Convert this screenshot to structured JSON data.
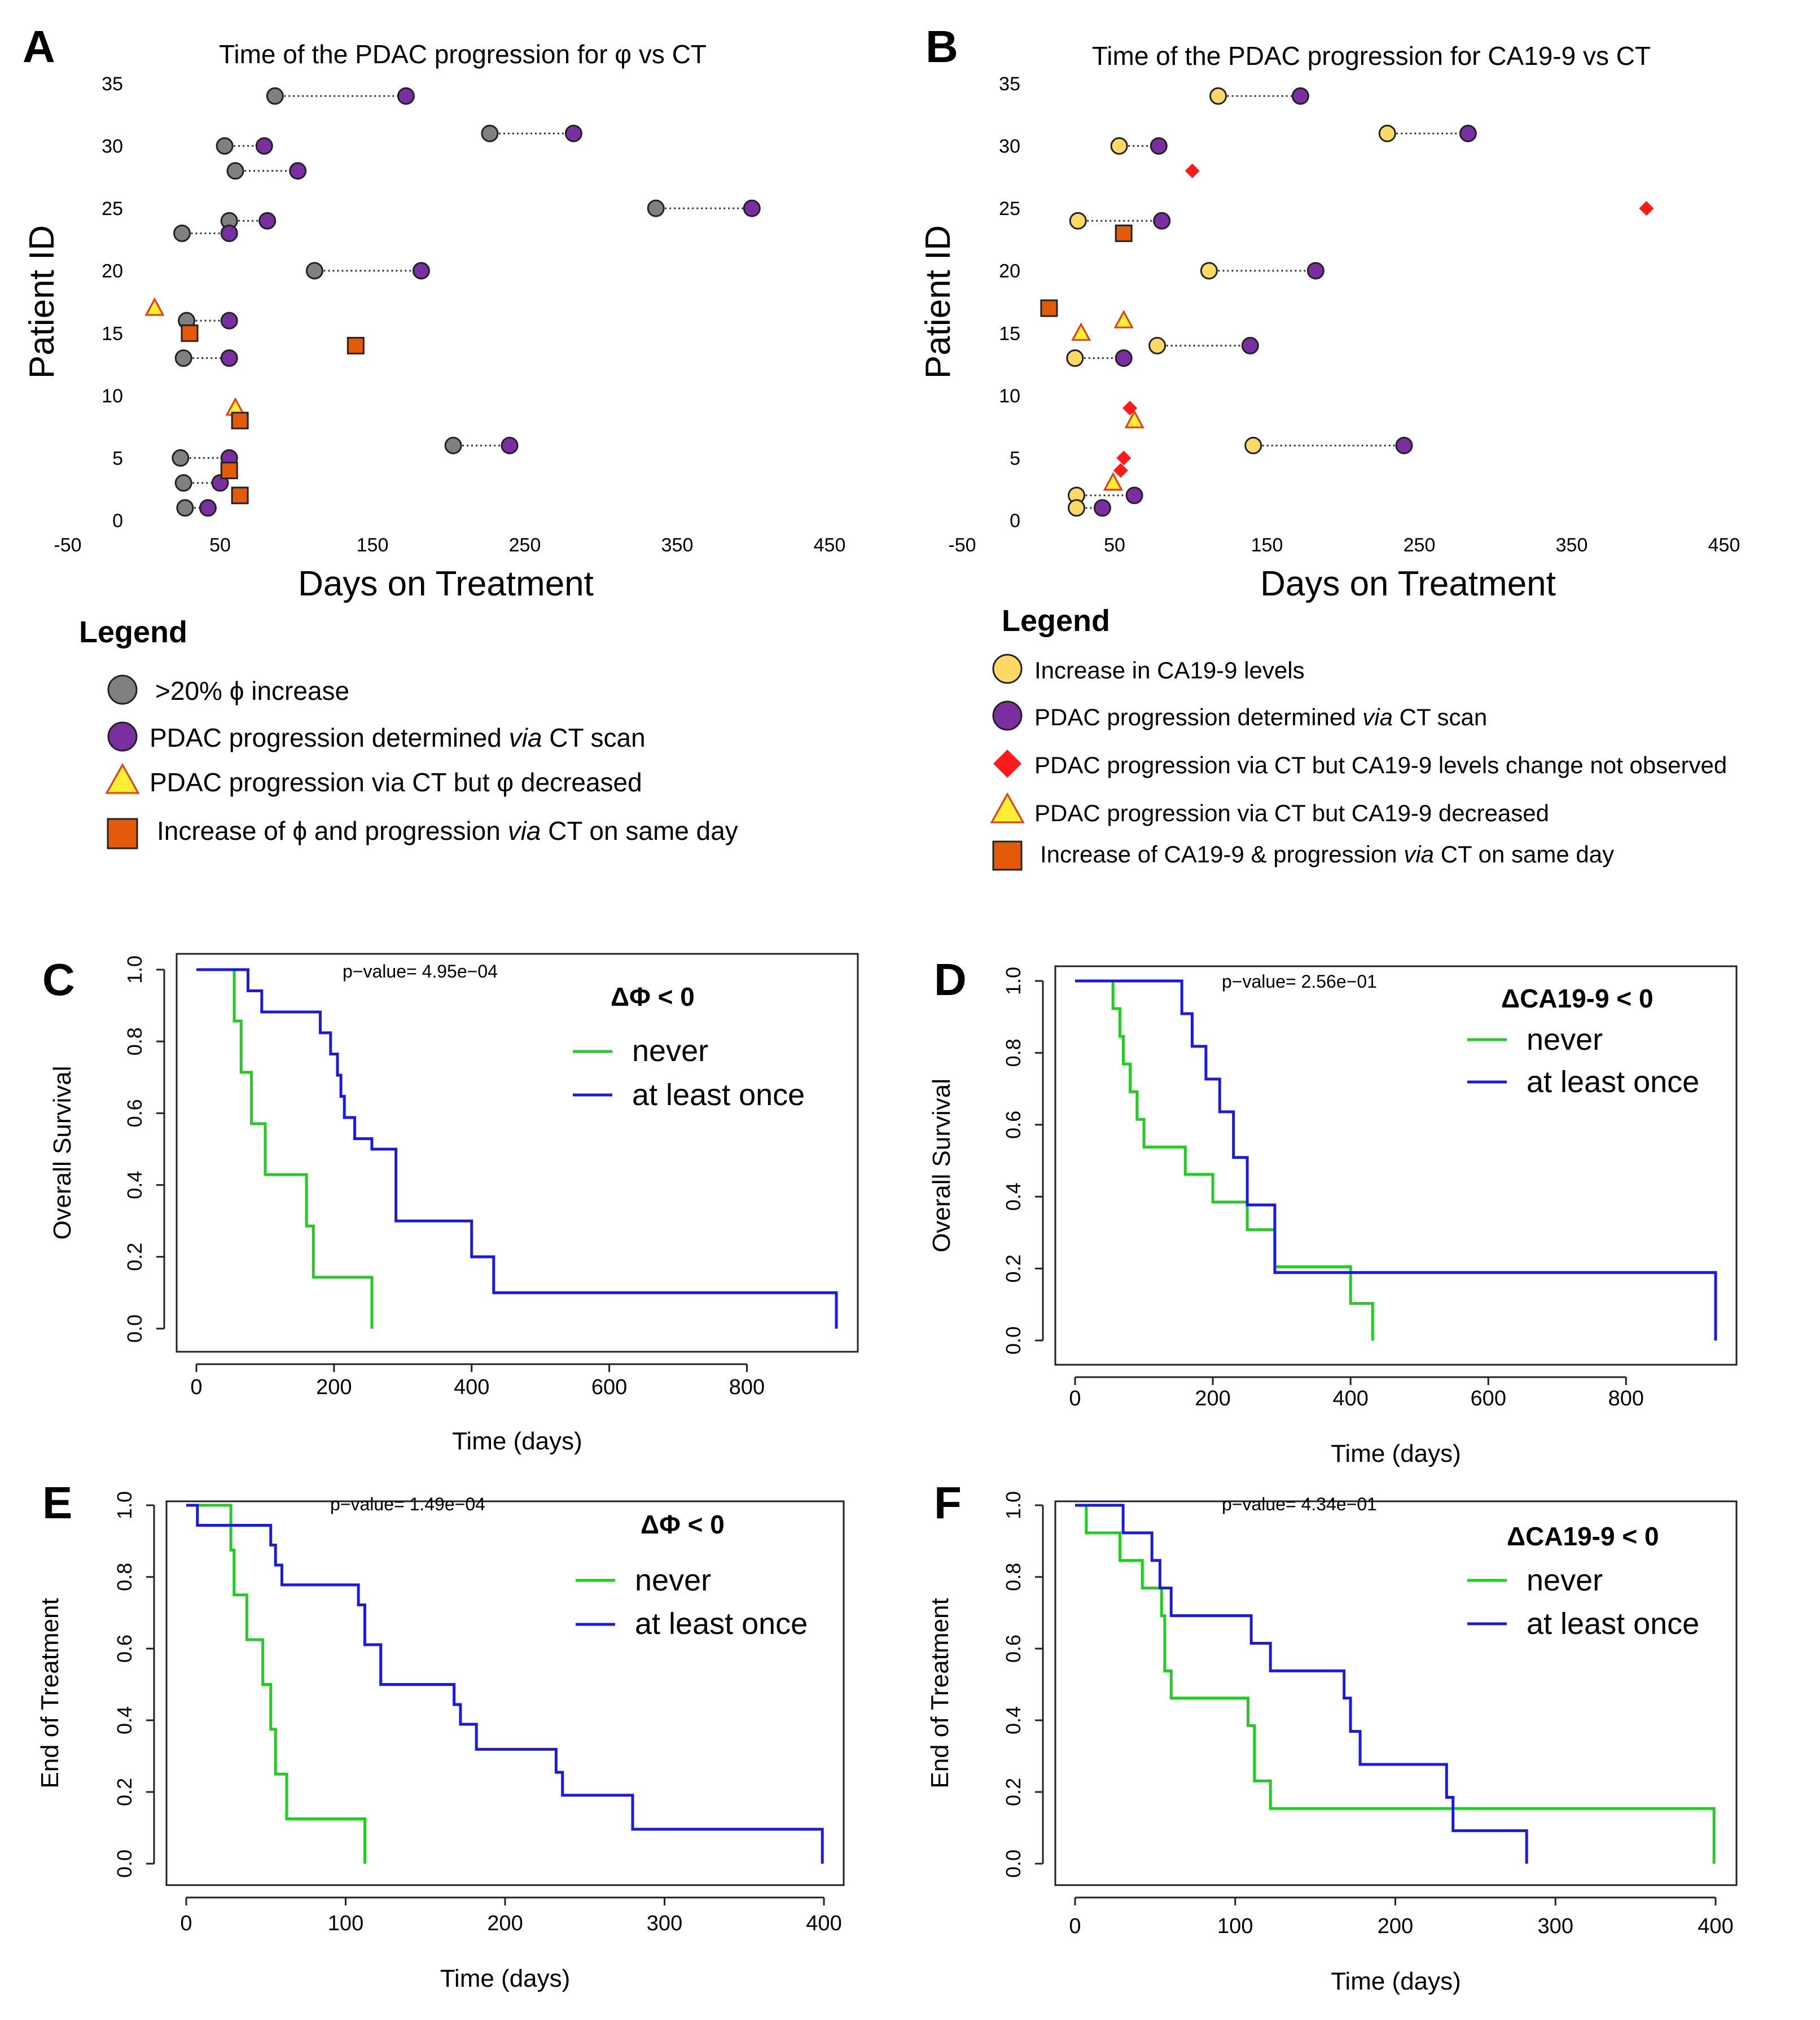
{
  "colors": {
    "grey": "#808080",
    "purple": "#7A2FA0",
    "yellow_tri": "#FFEE33",
    "tri_edge": "#E53B10",
    "orange": "#E35A0A",
    "light_yellow": "#FFD966",
    "red": "#FF1A1A",
    "green": "#22CC22",
    "blue": "#1A1AE0"
  },
  "panels": {
    "A": {
      "letter": "A",
      "title": "Time of the PDAC progression for φ vs CT",
      "xlabel": "Days on Treatment",
      "ylabel": "Patient ID",
      "legend_title": "Legend",
      "legend": [
        {
          "icon": "grey-circle-icon",
          "text": ">20% ϕ increase"
        },
        {
          "icon": "purple-circle-icon",
          "pre": "PDAC progression determined ",
          "it": "via",
          "post": " CT scan"
        },
        {
          "icon": "yellow-triangle-icon",
          "text": "PDAC progression via CT but φ decreased"
        },
        {
          "icon": "orange-square-icon",
          "pre": "Increase of ϕ and progression ",
          "it": "via",
          "post": " CT on same day"
        }
      ]
    },
    "B": {
      "letter": "B",
      "title": "Time of the PDAC progression for CA19-9 vs CT",
      "xlabel": "Days on Treatment",
      "ylabel": "Patient ID",
      "legend_title": "Legend",
      "legend": [
        {
          "icon": "yellow-circle-icon",
          "text": "Increase in CA19-9 levels"
        },
        {
          "icon": "purple-circle-icon",
          "pre": "PDAC progression determined ",
          "it": "via",
          "post": " CT scan"
        },
        {
          "icon": "red-diamond-icon",
          "text": "PDAC progression via CT but CA19-9 levels change not observed"
        },
        {
          "icon": "yellow-triangle-icon",
          "text": "PDAC progression via CT but CA19-9 decreased"
        },
        {
          "icon": "orange-square-icon",
          "pre": "Increase of CA19-9 & progression ",
          "it": "via",
          "post": " CT on same day"
        }
      ]
    },
    "C": {
      "letter": "C",
      "pvalue": "p−value= 4.95e−04",
      "legend_title": "ΔΦ < 0",
      "never": "never",
      "once": "at least once"
    },
    "D": {
      "letter": "D",
      "pvalue": "p−value= 2.56e−01",
      "legend_title": "ΔCA19-9 < 0",
      "never": "never",
      "once": "at least once"
    },
    "E": {
      "letter": "E",
      "pvalue": "p−value= 1.49e−04",
      "legend_title": "ΔΦ < 0",
      "never": "never",
      "once": "at least once"
    },
    "F": {
      "letter": "F",
      "pvalue": "p−value= 4.34e−01",
      "legend_title": "ΔCA19-9 < 0",
      "never": "never",
      "once": "at least once"
    }
  },
  "chart_data": [
    {
      "id": "A",
      "type": "scatter",
      "title": "Time of the PDAC progression for φ vs CT",
      "xlabel": "Days on Treatment",
      "ylabel": "Patient ID",
      "xlim": [
        -50,
        450
      ],
      "ylim": [
        0,
        35
      ],
      "xticks": [
        -50,
        50,
        150,
        250,
        350,
        450
      ],
      "yticks": [
        0,
        5,
        10,
        15,
        20,
        25,
        30,
        35
      ],
      "pairs": [
        {
          "pid": 34,
          "start": 86,
          "end": 172
        },
        {
          "pid": 31,
          "start": 227,
          "end": 282
        },
        {
          "pid": 30,
          "start": 53,
          "end": 79
        },
        {
          "pid": 28,
          "start": 60,
          "end": 101
        },
        {
          "pid": 25,
          "start": 336,
          "end": 399
        },
        {
          "pid": 24,
          "start": 56,
          "end": 81
        },
        {
          "pid": 23,
          "start": 25,
          "end": 56
        },
        {
          "pid": 20,
          "start": 112,
          "end": 182
        },
        {
          "pid": 16,
          "start": 28,
          "end": 56
        },
        {
          "pid": 13,
          "start": 26,
          "end": 56
        },
        {
          "pid": 6,
          "start": 203,
          "end": 240
        },
        {
          "pid": 5,
          "start": 24,
          "end": 56
        },
        {
          "pid": 3,
          "start": 26,
          "end": 50
        },
        {
          "pid": 1,
          "start": 27,
          "end": 42
        }
      ],
      "triangles": [
        {
          "day": 7,
          "pid": 17
        },
        {
          "day": 60,
          "pid": 9
        }
      ],
      "squares": [
        {
          "day": 30,
          "pid": 15
        },
        {
          "day": 139,
          "pid": 14
        },
        {
          "day": 63,
          "pid": 8
        },
        {
          "day": 56,
          "pid": 4
        },
        {
          "day": 63,
          "pid": 2
        }
      ]
    },
    {
      "id": "B",
      "type": "scatter",
      "title": "Time of the PDAC progression for CA19-9 vs CT",
      "xlabel": "Days on Treatment",
      "ylabel": "Patient ID",
      "xlim": [
        -50,
        450
      ],
      "ylim": [
        0,
        35
      ],
      "xticks": [
        -50,
        50,
        150,
        250,
        350,
        450
      ],
      "yticks": [
        0,
        5,
        10,
        15,
        20,
        25,
        30,
        35
      ],
      "pairs": [
        {
          "pid": 34,
          "start": 118,
          "end": 172
        },
        {
          "pid": 31,
          "start": 229,
          "end": 282
        },
        {
          "pid": 30,
          "start": 53,
          "end": 79
        },
        {
          "pid": 24,
          "start": 26,
          "end": 81
        },
        {
          "pid": 20,
          "start": 112,
          "end": 182
        },
        {
          "pid": 14,
          "start": 78,
          "end": 139
        },
        {
          "pid": 13,
          "start": 24,
          "end": 56
        },
        {
          "pid": 6,
          "start": 141,
          "end": 240
        },
        {
          "pid": 2,
          "start": 25,
          "end": 63
        },
        {
          "pid": 1,
          "start": 25,
          "end": 42
        }
      ],
      "diamonds": [
        {
          "day": 101,
          "pid": 28
        },
        {
          "day": 399,
          "pid": 25
        },
        {
          "day": 60,
          "pid": 9
        },
        {
          "day": 56,
          "pid": 5
        },
        {
          "day": 54,
          "pid": 4
        }
      ],
      "triangles": [
        {
          "day": 28,
          "pid": 15
        },
        {
          "day": 56,
          "pid": 16
        },
        {
          "day": 63,
          "pid": 8
        },
        {
          "day": 49,
          "pid": 3
        }
      ],
      "squares": [
        {
          "day": 56,
          "pid": 23
        },
        {
          "day": 7,
          "pid": 17
        }
      ]
    },
    {
      "id": "C",
      "type": "line",
      "ylabel": "Overall Survival",
      "xlabel": "Time (days)",
      "xlim": [
        -40,
        930
      ],
      "ylim": [
        0,
        1
      ],
      "xticks": [
        0,
        200,
        400,
        600,
        800
      ],
      "yticks": [
        0.0,
        0.2,
        0.4,
        0.6,
        0.8,
        1.0
      ],
      "series": [
        {
          "name": "never",
          "color": "green",
          "x": [
            0,
            55,
            65,
            80,
            100,
            160,
            170,
            255
          ],
          "y": [
            1.0,
            0.857,
            0.714,
            0.571,
            0.429,
            0.286,
            0.143,
            0.0
          ]
        },
        {
          "name": "at least once",
          "color": "blue",
          "x": [
            0,
            75,
            95,
            180,
            195,
            205,
            210,
            215,
            230,
            255,
            290,
            400,
            432,
            930
          ],
          "y": [
            1.0,
            0.941,
            0.882,
            0.824,
            0.765,
            0.706,
            0.647,
            0.588,
            0.529,
            0.5,
            0.3,
            0.2,
            0.1,
            0.0
          ]
        }
      ]
    },
    {
      "id": "D",
      "type": "line",
      "ylabel": "Overall Survival",
      "xlabel": "Time (days)",
      "xlim": [
        -40,
        930
      ],
      "ylim": [
        0,
        1
      ],
      "xticks": [
        0,
        200,
        400,
        600,
        800
      ],
      "yticks": [
        0.0,
        0.2,
        0.4,
        0.6,
        0.8,
        1.0
      ],
      "series": [
        {
          "name": "never",
          "color": "green",
          "x": [
            0,
            55,
            65,
            70,
            80,
            90,
            100,
            160,
            200,
            250,
            290,
            400,
            432
          ],
          "y": [
            1.0,
            0.923,
            0.846,
            0.769,
            0.692,
            0.615,
            0.538,
            0.462,
            0.385,
            0.308,
            0.205,
            0.103,
            0.0
          ]
        },
        {
          "name": "at least once",
          "color": "blue",
          "x": [
            0,
            155,
            170,
            190,
            210,
            230,
            250,
            290,
            930
          ],
          "y": [
            1.0,
            0.909,
            0.818,
            0.727,
            0.636,
            0.509,
            0.377,
            0.189,
            0.0
          ]
        }
      ]
    },
    {
      "id": "E",
      "type": "line",
      "ylabel": "End of Treatment",
      "xlabel": "Time (days)",
      "xlim": [
        -10,
        400
      ],
      "ylim": [
        0,
        1
      ],
      "xticks": [
        0,
        100,
        200,
        300,
        400
      ],
      "yticks": [
        0.0,
        0.2,
        0.4,
        0.6,
        0.8,
        1.0
      ],
      "series": [
        {
          "name": "never",
          "color": "green",
          "x": [
            0,
            28,
            30,
            38,
            48,
            53,
            56,
            63,
            112
          ],
          "y": [
            1.0,
            0.875,
            0.75,
            0.625,
            0.5,
            0.375,
            0.25,
            0.125,
            0.0
          ]
        },
        {
          "name": "at least once",
          "color": "blue",
          "x": [
            0,
            7,
            53,
            56,
            60,
            108,
            112,
            122,
            168,
            172,
            182,
            232,
            236,
            280,
            399
          ],
          "y": [
            1.0,
            0.944,
            0.889,
            0.833,
            0.778,
            0.722,
            0.611,
            0.5,
            0.444,
            0.389,
            0.319,
            0.255,
            0.191,
            0.096,
            0.0
          ]
        }
      ]
    },
    {
      "id": "F",
      "type": "line",
      "ylabel": "End of Treatment",
      "xlabel": "Time (days)",
      "xlim": [
        -10,
        400
      ],
      "ylim": [
        0,
        1
      ],
      "xticks": [
        0,
        100,
        200,
        300,
        400
      ],
      "yticks": [
        0.0,
        0.2,
        0.4,
        0.6,
        0.8,
        1.0
      ],
      "series": [
        {
          "name": "never",
          "color": "green",
          "x": [
            0,
            7,
            28,
            42,
            54,
            56,
            60,
            108,
            112,
            122,
            399
          ],
          "y": [
            1.0,
            0.923,
            0.846,
            0.769,
            0.692,
            0.538,
            0.462,
            0.385,
            0.231,
            0.154,
            0.0
          ]
        },
        {
          "name": "at least once",
          "color": "blue",
          "x": [
            0,
            30,
            48,
            53,
            60,
            110,
            122,
            168,
            172,
            178,
            182,
            232,
            236,
            282
          ],
          "y": [
            1.0,
            0.923,
            0.846,
            0.769,
            0.692,
            0.615,
            0.538,
            0.462,
            0.369,
            0.277,
            0.277,
            0.185,
            0.092,
            0.0
          ]
        }
      ]
    }
  ]
}
